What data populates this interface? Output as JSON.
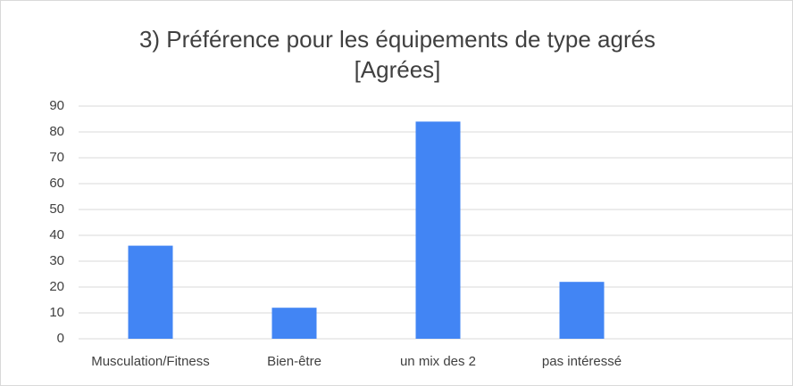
{
  "chart_data": {
    "type": "bar",
    "title": [
      "3) Préférence pour les équipements de type agrés",
      "[Agrées]"
    ],
    "categories": [
      "Musculation/Fitness",
      "Bien-être",
      "un mix des 2",
      "pas intéressé",
      null
    ],
    "values": [
      36,
      12,
      84,
      22,
      null
    ],
    "color": "#4285f4",
    "ylim": [
      0,
      90
    ],
    "yticks": [
      0,
      10,
      20,
      30,
      40,
      50,
      60,
      70,
      80,
      90
    ],
    "grid": true
  }
}
